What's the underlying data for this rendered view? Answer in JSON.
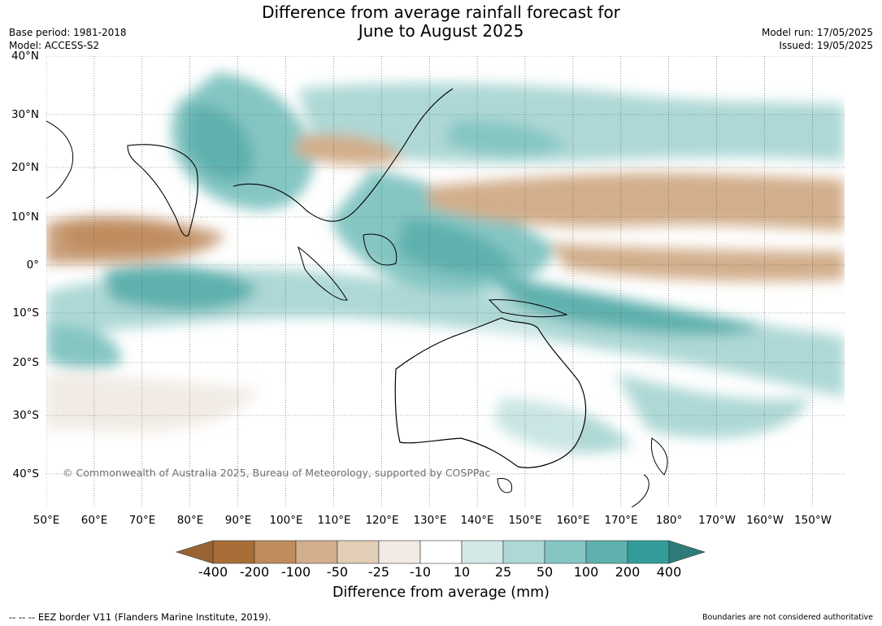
{
  "header": {
    "title_line1": "Difference from average rainfall forecast for",
    "title_line2": "June to August 2025",
    "base_period": "Base period: 1981-2018",
    "model": "Model: ACCESS-S2",
    "model_run": "Model run: 17/05/2025",
    "issued": "Issued: 19/05/2025"
  },
  "map": {
    "lat_labels": [
      "40°N",
      "30°N",
      "20°N",
      "10°N",
      "0°",
      "10°S",
      "20°S",
      "30°S",
      "40°S"
    ],
    "lon_labels": [
      "50°E",
      "60°E",
      "70°E",
      "80°E",
      "90°E",
      "100°E",
      "110°E",
      "120°E",
      "130°E",
      "140°E",
      "150°E",
      "160°E",
      "170°E",
      "180°",
      "170°W",
      "160°W",
      "150°W"
    ],
    "copyright": "© Commonwealth of Australia 2025, Bureau of Meteorology, supported by COSPPac",
    "colors": {
      "wet_strong": "#319e99",
      "wet_mid": "#5aaeaa",
      "dry_strong": "#b3804f",
      "dry_mid": "#c89e78",
      "land_outline": "#000000",
      "border": "#888888"
    }
  },
  "legend": {
    "ticks": [
      "-400",
      "-200",
      "-100",
      "-50",
      "-25",
      "-10",
      "10",
      "25",
      "50",
      "100",
      "200",
      "400"
    ],
    "bin_colors": [
      "#a96d37",
      "#bf8c5e",
      "#d2ae8b",
      "#e2cdb8",
      "#f1ebe4",
      "#ffffff",
      "#d4e9e7",
      "#add8d6",
      "#85c6c3",
      "#5eb1ae",
      "#339c98"
    ],
    "under_color": "#986434",
    "over_color": "#2e7b7a",
    "label": "Difference from average (mm)"
  },
  "footer": {
    "eez_note": "--  --  -- EEZ border V11 (Flanders Marine Institute, 2019).",
    "disclaimer": "Boundaries are not considered authoritative"
  }
}
